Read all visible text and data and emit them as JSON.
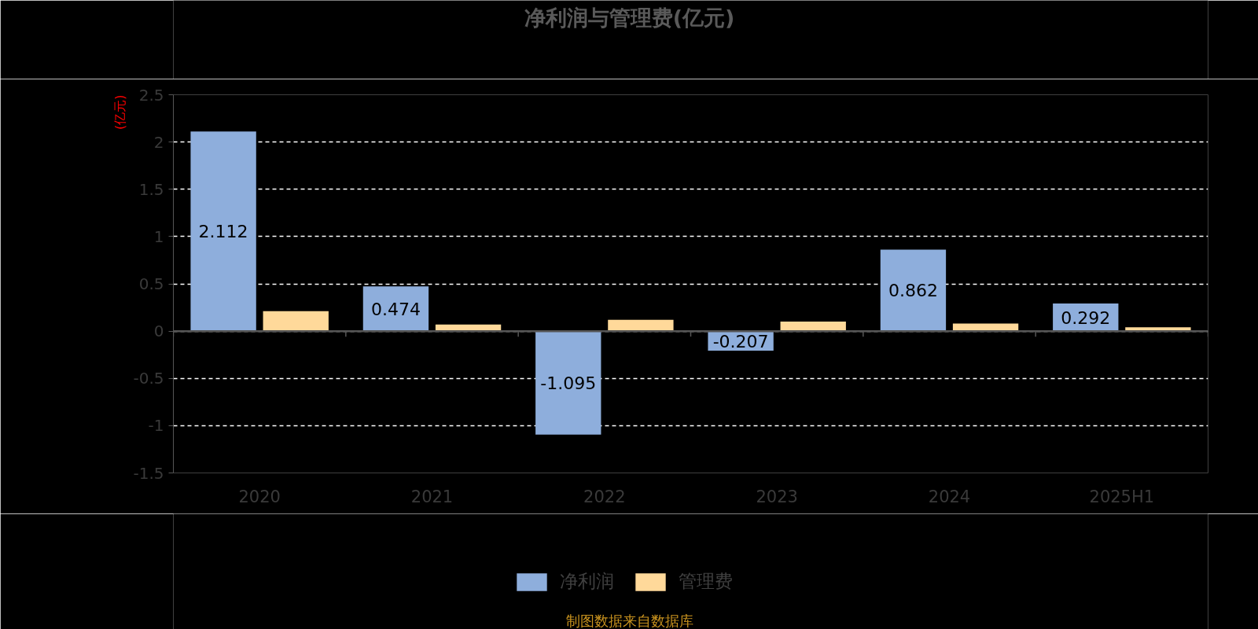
{
  "chart_data": {
    "type": "bar",
    "title": "净利润与管理费(亿元)",
    "ylabel": "(亿元)",
    "categories": [
      "2020",
      "2021",
      "2022",
      "2023",
      "2024",
      "2025H1"
    ],
    "series": [
      {
        "name": "净利润",
        "color": "#8eaedc",
        "values": [
          2.112,
          0.474,
          -1.095,
          -0.207,
          0.862,
          0.292
        ],
        "value_labels": [
          "2.112",
          "0.474",
          "-1.095",
          "-0.207",
          "0.862",
          "0.292"
        ]
      },
      {
        "name": "管理费",
        "color": "#ffd99a",
        "values": [
          0.21,
          0.07,
          0.12,
          0.1,
          0.08,
          0.04
        ]
      }
    ],
    "ylim": [
      -1.5,
      2.5
    ],
    "yticks": [
      -1.5,
      -1,
      -0.5,
      0,
      0.5,
      1,
      1.5,
      2,
      2.5
    ],
    "grid": "y",
    "legend": "bottom",
    "annotations": [
      "制图数据来自数据库"
    ]
  }
}
